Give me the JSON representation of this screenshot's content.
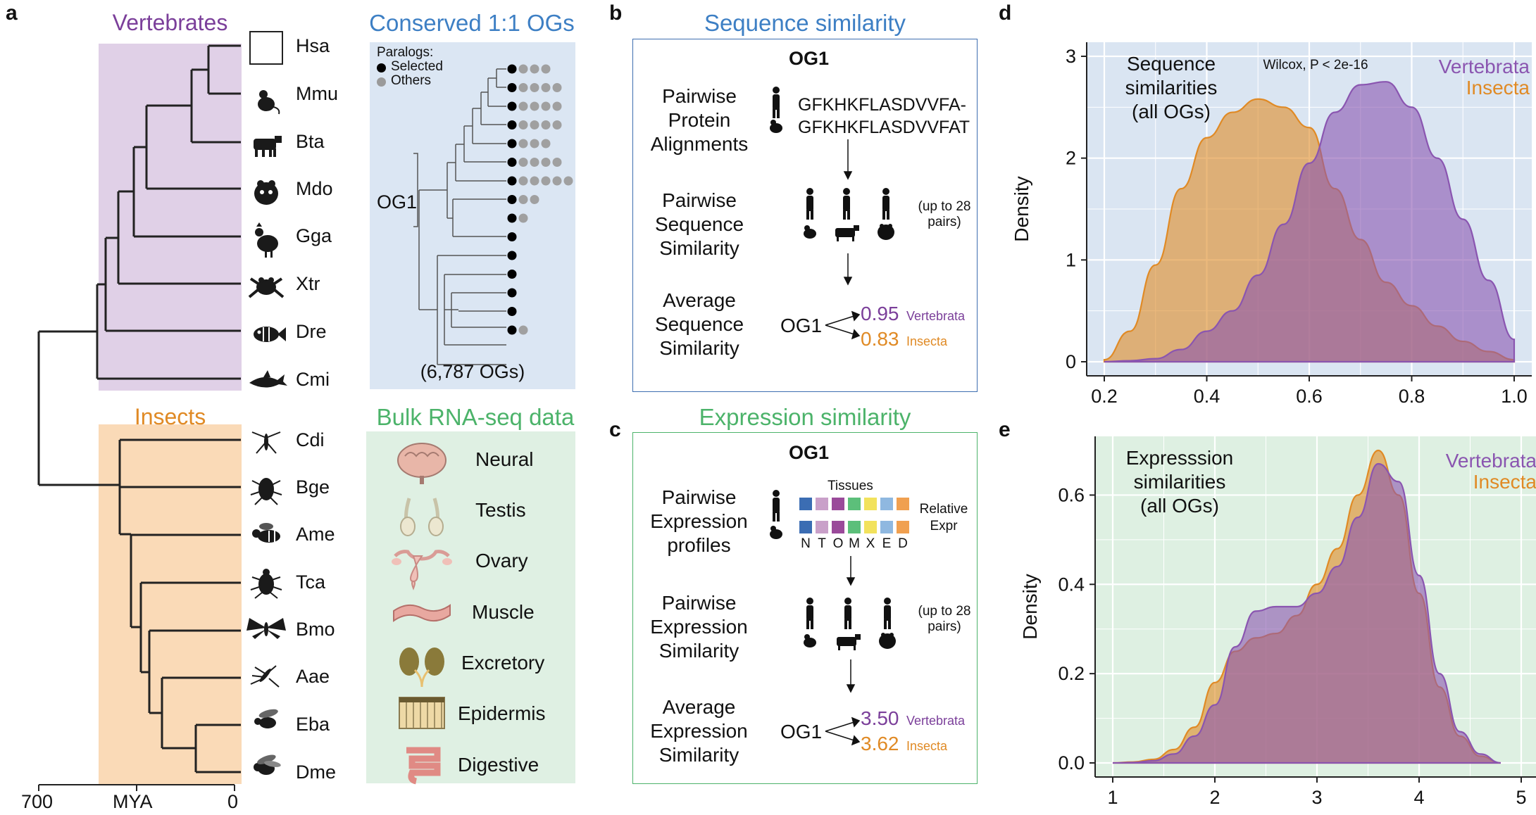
{
  "panel_a": {
    "letter": "a",
    "vertebrates_title": "Vertebrates",
    "insects_title": "Insects",
    "vert_species": [
      "Hsa",
      "Mmu",
      "Bta",
      "Mdo",
      "Gga",
      "Xtr",
      "Dre",
      "Cmi"
    ],
    "insect_species": [
      "Cdi",
      "Bge",
      "Ame",
      "Tca",
      "Bmo",
      "Aae",
      "Eba",
      "Dme"
    ],
    "axis": {
      "left": "700",
      "mid": "MYA",
      "right": "0"
    },
    "conserved_title": "Conserved 1:1 OGs",
    "paralogs_heading": "Paralogs:",
    "paralogs_selected": "Selected",
    "paralogs_others": "Others",
    "og_label": "OG1",
    "og_count": "(6,787 OGs)",
    "bulk_title": "Bulk RNA-seq data",
    "tissues": [
      "Neural",
      "Testis",
      "Ovary",
      "Muscle",
      "Excretory",
      "Epidermis",
      "Digestive"
    ],
    "colors": {
      "vert_bg": "#e0d0e7",
      "insect_bg": "#fadab7",
      "og_bg": "#dbe6f3",
      "bulk_bg": "#dff0e3"
    }
  },
  "panel_b": {
    "letter": "b",
    "title": "Sequence similarity",
    "og": "OG1",
    "step1": "Pairwise Protein Alignments",
    "seq1": "GFKHKFLASDVVFA-",
    "seq2": "GFKHKFLASDVVFAT",
    "step2": "Pairwise Sequence Similarity",
    "pairs_note": "(up to 28 pairs)",
    "step3": "Average Sequence Similarity",
    "og_arrow_label": "OG1",
    "vert_value": "0.95",
    "vert_label": "Vertebrata",
    "insect_value": "0.83",
    "insect_label": "Insecta"
  },
  "panel_c": {
    "letter": "c",
    "title": "Expression similarity",
    "og": "OG1",
    "step1": "Pairwise Expression profiles",
    "tissues_heading": "Tissues",
    "relative_expr": "Relative Expr",
    "tissue_letters": [
      "N",
      "T",
      "O",
      "M",
      "X",
      "E",
      "D"
    ],
    "tissue_colors_row1": [
      "#3b6db3",
      "#c9a0c9",
      "#9a4a9a",
      "#5cbf7a",
      "#f2e25c",
      "#8fb8e0",
      "#f0a050"
    ],
    "tissue_colors_row2": [
      "#3b6db3",
      "#c9a0c9",
      "#9a4a9a",
      "#5cbf7a",
      "#f2e25c",
      "#8fb8e0",
      "#f0a050"
    ],
    "step2": "Pairwise Expression Similarity",
    "pairs_note": "(up to 28 pairs)",
    "step3": "Average Expression Similarity",
    "og_arrow_label": "OG1",
    "vert_value": "3.50",
    "vert_label": "Vertebrata",
    "insect_value": "3.62",
    "insect_label": "Insecta"
  },
  "chart_data": [
    {
      "letter": "d",
      "type": "area",
      "annotation": "Sequence similarities (all OGs)",
      "stat": "Wilcox, P < 2e-16",
      "ylabel": "Density",
      "xlim": [
        0.2,
        1.0
      ],
      "ylim": [
        0,
        3
      ],
      "xticks": [
        "0.2",
        "0.4",
        "0.6",
        "0.8",
        "1.0"
      ],
      "yticks": [
        "0",
        "1",
        "2",
        "3"
      ],
      "legend": "top-right",
      "background": "#dae5f2",
      "series": [
        {
          "name": "Insecta",
          "color": "#e08a25",
          "x": [
            0.2,
            0.25,
            0.3,
            0.35,
            0.4,
            0.45,
            0.5,
            0.55,
            0.6,
            0.65,
            0.7,
            0.75,
            0.8,
            0.85,
            0.9,
            0.95,
            1.0
          ],
          "values": [
            0.02,
            0.3,
            0.95,
            1.7,
            2.2,
            2.45,
            2.58,
            2.5,
            2.3,
            1.7,
            1.2,
            0.78,
            0.55,
            0.35,
            0.2,
            0.1,
            0.02
          ]
        },
        {
          "name": "Vertebrata",
          "color": "#8a55b0",
          "x": [
            0.2,
            0.25,
            0.3,
            0.35,
            0.4,
            0.45,
            0.5,
            0.55,
            0.6,
            0.65,
            0.7,
            0.75,
            0.8,
            0.85,
            0.9,
            0.95,
            1.0
          ],
          "values": [
            0.0,
            0.01,
            0.03,
            0.12,
            0.3,
            0.5,
            0.85,
            1.35,
            1.95,
            2.45,
            2.72,
            2.75,
            2.5,
            2.0,
            1.4,
            0.8,
            0.22
          ]
        }
      ]
    },
    {
      "letter": "e",
      "type": "area",
      "annotation": "Expresssion similarities (all OGs)",
      "ylabel": "Density",
      "xlim": [
        1,
        5
      ],
      "ylim": [
        0,
        0.7
      ],
      "xticks": [
        "1",
        "2",
        "3",
        "4",
        "5"
      ],
      "yticks": [
        "0.0",
        "0.2",
        "0.4",
        "0.6"
      ],
      "legend": "top-right",
      "background": "#def0e2",
      "series": [
        {
          "name": "Insecta",
          "color": "#e08a25",
          "x": [
            1.0,
            1.2,
            1.4,
            1.6,
            1.8,
            2.0,
            2.2,
            2.4,
            2.6,
            2.8,
            3.0,
            3.2,
            3.4,
            3.6,
            3.8,
            4.0,
            4.2,
            4.4,
            4.6,
            4.8
          ],
          "values": [
            0.0,
            0.002,
            0.008,
            0.03,
            0.08,
            0.18,
            0.25,
            0.28,
            0.29,
            0.33,
            0.4,
            0.48,
            0.6,
            0.7,
            0.6,
            0.38,
            0.17,
            0.06,
            0.015,
            0.0
          ]
        },
        {
          "name": "Vertebrata",
          "color": "#8a55b0",
          "x": [
            1.0,
            1.2,
            1.4,
            1.6,
            1.8,
            2.0,
            2.2,
            2.4,
            2.6,
            2.8,
            3.0,
            3.2,
            3.4,
            3.6,
            3.8,
            4.0,
            4.2,
            4.4,
            4.6,
            4.8
          ],
          "values": [
            0.0,
            0.001,
            0.005,
            0.02,
            0.06,
            0.13,
            0.26,
            0.34,
            0.35,
            0.35,
            0.38,
            0.44,
            0.55,
            0.67,
            0.63,
            0.42,
            0.2,
            0.07,
            0.02,
            0.0
          ]
        }
      ]
    }
  ]
}
